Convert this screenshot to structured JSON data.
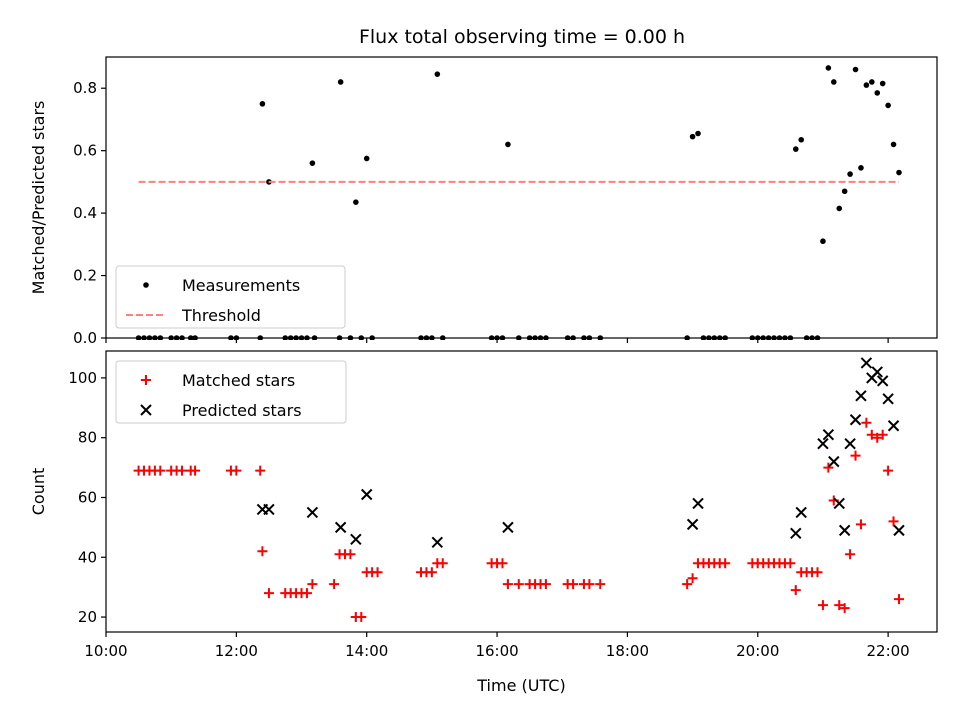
{
  "figure_title": "Flux total observing time = 0.00 h",
  "chart_data": [
    {
      "type": "scatter",
      "xlabel": "",
      "ylabel": "Matched/Predicted stars",
      "xlim": [
        "10:00",
        "22:45"
      ],
      "ylim": [
        0,
        0.9
      ],
      "x_ticks": [
        "10:00",
        "12:00",
        "14:00",
        "16:00",
        "18:00",
        "20:00",
        "22:00"
      ],
      "y_ticks": [
        "0.0",
        "0.2",
        "0.4",
        "0.6",
        "0.8"
      ],
      "y_tick_values": [
        0,
        0.2,
        0.4,
        0.6,
        0.8
      ],
      "grid": false,
      "legend": "lower-left",
      "series": [
        {
          "name": "Measurements",
          "color": "#000000",
          "marker": "dot",
          "points": [
            [
              "10:30",
              0
            ],
            [
              "10:35",
              0
            ],
            [
              "10:40",
              0
            ],
            [
              "10:45",
              0
            ],
            [
              "10:50",
              0
            ],
            [
              "11:00",
              0
            ],
            [
              "11:05",
              0
            ],
            [
              "11:10",
              0
            ],
            [
              "11:18",
              0
            ],
            [
              "11:22",
              0
            ],
            [
              "11:55",
              0
            ],
            [
              "12:00",
              0
            ],
            [
              "12:22",
              0
            ],
            [
              "12:24",
              0.75
            ],
            [
              "12:30",
              0.5
            ],
            [
              "12:45",
              0
            ],
            [
              "12:50",
              0
            ],
            [
              "12:55",
              0
            ],
            [
              "13:00",
              0
            ],
            [
              "13:05",
              0
            ],
            [
              "13:10",
              0.56
            ],
            [
              "13:12",
              0
            ],
            [
              "13:35",
              0
            ],
            [
              "13:36",
              0.82
            ],
            [
              "13:45",
              0
            ],
            [
              "13:50",
              0.435
            ],
            [
              "13:55",
              0
            ],
            [
              "14:00",
              0.575
            ],
            [
              "14:05",
              0
            ],
            [
              "14:50",
              0
            ],
            [
              "14:55",
              0
            ],
            [
              "15:00",
              0
            ],
            [
              "15:05",
              0.845
            ],
            [
              "15:10",
              0
            ],
            [
              "15:55",
              0
            ],
            [
              "16:00",
              0
            ],
            [
              "16:05",
              0
            ],
            [
              "16:10",
              0.62
            ],
            [
              "16:20",
              0
            ],
            [
              "16:30",
              0
            ],
            [
              "16:35",
              0
            ],
            [
              "16:40",
              0
            ],
            [
              "16:45",
              0
            ],
            [
              "17:05",
              0
            ],
            [
              "17:10",
              0
            ],
            [
              "17:20",
              0
            ],
            [
              "17:25",
              0
            ],
            [
              "17:35",
              0
            ],
            [
              "18:55",
              0
            ],
            [
              "19:00",
              0.645
            ],
            [
              "19:05",
              0.655
            ],
            [
              "19:10",
              0
            ],
            [
              "19:15",
              0
            ],
            [
              "19:20",
              0
            ],
            [
              "19:25",
              0
            ],
            [
              "19:30",
              0
            ],
            [
              "19:55",
              0
            ],
            [
              "20:00",
              0
            ],
            [
              "20:05",
              0
            ],
            [
              "20:10",
              0
            ],
            [
              "20:15",
              0
            ],
            [
              "20:20",
              0
            ],
            [
              "20:25",
              0
            ],
            [
              "20:30",
              0
            ],
            [
              "20:35",
              0.605
            ],
            [
              "20:40",
              0.635
            ],
            [
              "20:45",
              0
            ],
            [
              "20:50",
              0
            ],
            [
              "20:55",
              0
            ],
            [
              "21:00",
              0.31
            ],
            [
              "21:05",
              0.865
            ],
            [
              "21:10",
              0.82
            ],
            [
              "21:15",
              0.415
            ],
            [
              "21:20",
              0.47
            ],
            [
              "21:25",
              0.525
            ],
            [
              "21:30",
              0.86
            ],
            [
              "21:35",
              0.545
            ],
            [
              "21:40",
              0.81
            ],
            [
              "21:45",
              0.82
            ],
            [
              "21:50",
              0.785
            ],
            [
              "21:55",
              0.815
            ],
            [
              "22:00",
              0.745
            ],
            [
              "22:05",
              0.62
            ],
            [
              "22:10",
              0.53
            ]
          ]
        },
        {
          "name": "Threshold",
          "color": "#ff7f7f",
          "style": "dashed-line",
          "points": [
            [
              "10:30",
              0.5
            ],
            [
              "22:10",
              0.5
            ]
          ]
        }
      ]
    },
    {
      "type": "scatter",
      "xlabel": "Time (UTC)",
      "ylabel": "Count",
      "xlim": [
        "10:00",
        "22:45"
      ],
      "ylim": [
        15,
        109
      ],
      "x_ticks": [
        "10:00",
        "12:00",
        "14:00",
        "16:00",
        "18:00",
        "20:00",
        "22:00"
      ],
      "y_ticks": [
        "20",
        "40",
        "60",
        "80",
        "100"
      ],
      "y_tick_values": [
        20,
        40,
        60,
        80,
        100
      ],
      "grid": false,
      "legend": "top-left",
      "series": [
        {
          "name": "Matched stars",
          "color": "#ff0000",
          "marker": "plus",
          "points": [
            [
              "10:30",
              69
            ],
            [
              "10:35",
              69
            ],
            [
              "10:40",
              69
            ],
            [
              "10:45",
              69
            ],
            [
              "10:50",
              69
            ],
            [
              "11:00",
              69
            ],
            [
              "11:05",
              69
            ],
            [
              "11:10",
              69
            ],
            [
              "11:18",
              69
            ],
            [
              "11:22",
              69
            ],
            [
              "11:55",
              69
            ],
            [
              "12:00",
              69
            ],
            [
              "12:22",
              69
            ],
            [
              "12:24",
              42
            ],
            [
              "12:30",
              28
            ],
            [
              "12:45",
              28
            ],
            [
              "12:50",
              28
            ],
            [
              "12:55",
              28
            ],
            [
              "13:00",
              28
            ],
            [
              "13:05",
              28
            ],
            [
              "13:10",
              31
            ],
            [
              "13:30",
              31
            ],
            [
              "13:35",
              41
            ],
            [
              "13:40",
              41
            ],
            [
              "13:45",
              41
            ],
            [
              "13:50",
              20
            ],
            [
              "13:55",
              20
            ],
            [
              "14:00",
              35
            ],
            [
              "14:05",
              35
            ],
            [
              "14:10",
              35
            ],
            [
              "14:50",
              35
            ],
            [
              "14:55",
              35
            ],
            [
              "15:00",
              35
            ],
            [
              "15:05",
              38
            ],
            [
              "15:10",
              38
            ],
            [
              "15:55",
              38
            ],
            [
              "16:00",
              38
            ],
            [
              "16:05",
              38
            ],
            [
              "16:10",
              31
            ],
            [
              "16:20",
              31
            ],
            [
              "16:30",
              31
            ],
            [
              "16:35",
              31
            ],
            [
              "16:40",
              31
            ],
            [
              "16:45",
              31
            ],
            [
              "17:05",
              31
            ],
            [
              "17:10",
              31
            ],
            [
              "17:20",
              31
            ],
            [
              "17:25",
              31
            ],
            [
              "17:35",
              31
            ],
            [
              "18:55",
              31
            ],
            [
              "19:00",
              33
            ],
            [
              "19:05",
              38
            ],
            [
              "19:10",
              38
            ],
            [
              "19:15",
              38
            ],
            [
              "19:20",
              38
            ],
            [
              "19:25",
              38
            ],
            [
              "19:30",
              38
            ],
            [
              "19:55",
              38
            ],
            [
              "20:00",
              38
            ],
            [
              "20:05",
              38
            ],
            [
              "20:10",
              38
            ],
            [
              "20:15",
              38
            ],
            [
              "20:20",
              38
            ],
            [
              "20:25",
              38
            ],
            [
              "20:30",
              38
            ],
            [
              "20:35",
              29
            ],
            [
              "20:40",
              35
            ],
            [
              "20:45",
              35
            ],
            [
              "20:50",
              35
            ],
            [
              "20:55",
              35
            ],
            [
              "21:00",
              24
            ],
            [
              "21:05",
              70
            ],
            [
              "21:10",
              59
            ],
            [
              "21:15",
              24
            ],
            [
              "21:20",
              23
            ],
            [
              "21:25",
              41
            ],
            [
              "21:30",
              74
            ],
            [
              "21:35",
              51
            ],
            [
              "21:40",
              85
            ],
            [
              "21:45",
              81
            ],
            [
              "21:50",
              80
            ],
            [
              "21:55",
              81
            ],
            [
              "22:00",
              69
            ],
            [
              "22:05",
              52
            ],
            [
              "22:10",
              26
            ]
          ]
        },
        {
          "name": "Predicted stars",
          "color": "#000000",
          "marker": "x",
          "points": [
            [
              "12:24",
              56
            ],
            [
              "12:30",
              56
            ],
            [
              "13:10",
              55
            ],
            [
              "13:36",
              50
            ],
            [
              "13:50",
              46
            ],
            [
              "14:00",
              61
            ],
            [
              "15:05",
              45
            ],
            [
              "16:10",
              50
            ],
            [
              "19:00",
              51
            ],
            [
              "19:05",
              58
            ],
            [
              "20:35",
              48
            ],
            [
              "20:40",
              55
            ],
            [
              "21:00",
              78
            ],
            [
              "21:05",
              81
            ],
            [
              "21:10",
              72
            ],
            [
              "21:15",
              58
            ],
            [
              "21:20",
              49
            ],
            [
              "21:25",
              78
            ],
            [
              "21:30",
              86
            ],
            [
              "21:35",
              94
            ],
            [
              "21:40",
              105
            ],
            [
              "21:45",
              100
            ],
            [
              "21:50",
              102
            ],
            [
              "21:55",
              99
            ],
            [
              "22:00",
              93
            ],
            [
              "22:05",
              84
            ],
            [
              "22:10",
              49
            ]
          ]
        }
      ]
    }
  ]
}
